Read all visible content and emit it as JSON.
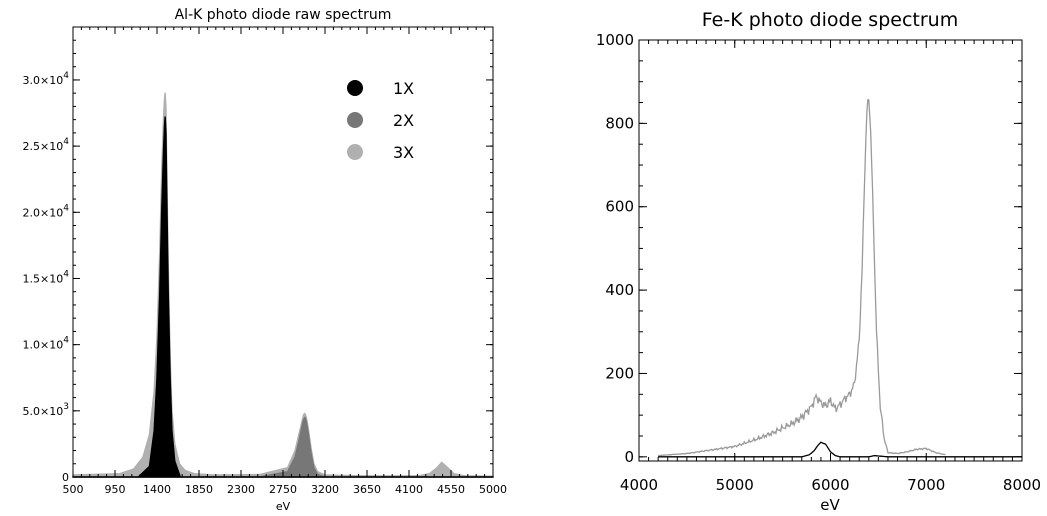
{
  "chart_data": [
    {
      "type": "area",
      "title": "Al-K photo diode raw spectrum",
      "xlabel": "eV",
      "ylabel": "",
      "xlim": [
        500,
        5000
      ],
      "ylim": [
        0,
        34000
      ],
      "xticks": [
        500,
        950,
        1400,
        1850,
        2300,
        2750,
        3200,
        3650,
        4100,
        4550,
        5000
      ],
      "xtick_labels": [
        "500",
        "950",
        "1400",
        "1850",
        "2300",
        "2750",
        "3200",
        "3650",
        "4100",
        "4550",
        "5000"
      ],
      "yticks": [
        0,
        5000,
        10000,
        15000,
        20000,
        25000,
        30000
      ],
      "ytick_labels": [
        {
          "mant": "0",
          "exp": ""
        },
        {
          "mant": "5.0×10",
          "exp": "3"
        },
        {
          "mant": "1.0×10",
          "exp": "4"
        },
        {
          "mant": "1.5×10",
          "exp": "4"
        },
        {
          "mant": "2.0×10",
          "exp": "4"
        },
        {
          "mant": "2.5×10",
          "exp": "4"
        },
        {
          "mant": "3.0×10",
          "exp": "4"
        }
      ],
      "legend_position": "top-right",
      "series": [
        {
          "name": "3X",
          "color": "#b0b0b0",
          "x": [
            500,
            1000,
            1150,
            1250,
            1320,
            1370,
            1400,
            1430,
            1450,
            1470,
            1480,
            1487,
            1495,
            1505,
            1520,
            1540,
            1560,
            1590,
            1640,
            1700,
            1800,
            2000,
            2500,
            2800,
            2880,
            2920,
            2950,
            2970,
            2985,
            3000,
            3020,
            3050,
            3080,
            3120,
            3200,
            3600,
            4200,
            4320,
            4400,
            4450,
            4500,
            4580,
            4700,
            5000
          ],
          "y": [
            150,
            250,
            600,
            1500,
            3200,
            6500,
            10500,
            17000,
            23000,
            27000,
            28500,
            29000,
            28000,
            23000,
            16000,
            9000,
            5000,
            2500,
            1000,
            500,
            250,
            150,
            180,
            700,
            2000,
            3200,
            4100,
            4700,
            4800,
            4500,
            3700,
            2200,
            1000,
            400,
            150,
            80,
            80,
            250,
            700,
            1100,
            800,
            250,
            80,
            50
          ]
        },
        {
          "name": "2X",
          "color": "#777777",
          "x": [
            500,
            2500,
            2800,
            2880,
            2920,
            2950,
            2970,
            2985,
            3000,
            3020,
            3050,
            3080,
            3120,
            3200,
            5000
          ],
          "y": [
            0,
            0,
            400,
            1500,
            2700,
            3700,
            4300,
            4500,
            4200,
            3300,
            1800,
            700,
            200,
            0,
            0
          ]
        },
        {
          "name": "1X",
          "color": "#000000",
          "x": [
            500,
            1200,
            1320,
            1370,
            1400,
            1430,
            1450,
            1470,
            1480,
            1487,
            1495,
            1505,
            1520,
            1540,
            1560,
            1590,
            1650,
            5000
          ],
          "y": [
            0,
            0,
            800,
            3500,
            7500,
            14000,
            20000,
            24500,
            26500,
            27200,
            26000,
            21000,
            14000,
            7500,
            3500,
            1200,
            0,
            0
          ]
        }
      ]
    },
    {
      "type": "line",
      "title": "Fe-K photo diode spectrum",
      "xlabel": "eV",
      "ylabel": "",
      "xlim": [
        4000,
        8000
      ],
      "ylim": [
        -10,
        1000
      ],
      "xticks": [
        4000,
        5000,
        6000,
        7000,
        8000
      ],
      "xtick_labels": [
        "4000",
        "5000",
        "6000",
        "7000",
        "8000"
      ],
      "yticks": [
        0,
        200,
        400,
        600,
        800,
        1000
      ],
      "ytick_labels": [
        "0",
        "200",
        "400",
        "600",
        "800",
        "1000"
      ],
      "series": [
        {
          "color": "#9a9a9a",
          "x": [
            4200,
            4500,
            4800,
            5000,
            5200,
            5400,
            5600,
            5700,
            5800,
            5850,
            5900,
            5950,
            6000,
            6050,
            6100,
            6150,
            6200,
            6250,
            6300,
            6330,
            6360,
            6380,
            6400,
            6420,
            6450,
            6480,
            6520,
            6560,
            6600,
            6700,
            6800,
            6900,
            7000,
            7100,
            7200
          ],
          "y": [
            3,
            8,
            18,
            25,
            40,
            58,
            80,
            95,
            120,
            145,
            130,
            122,
            135,
            115,
            125,
            140,
            150,
            175,
            280,
            450,
            700,
            830,
            860,
            780,
            550,
            300,
            120,
            45,
            10,
            8,
            12,
            18,
            20,
            10,
            5
          ]
        },
        {
          "color": "#000000",
          "x": [
            4200,
            5500,
            5700,
            5780,
            5830,
            5870,
            5900,
            5950,
            6000,
            6050,
            6100,
            6300,
            6400,
            6460,
            6500,
            6600,
            7200,
            8000
          ],
          "y": [
            0,
            0,
            0,
            5,
            15,
            28,
            35,
            30,
            12,
            3,
            0,
            0,
            0,
            3,
            2,
            0,
            0,
            0
          ]
        }
      ]
    }
  ]
}
